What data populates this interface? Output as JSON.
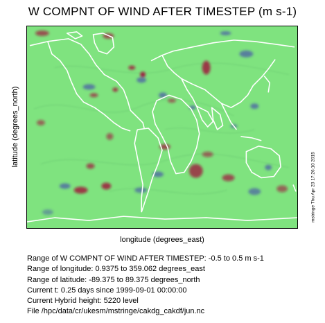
{
  "title": "W COMPNT OF WIND AFTER TIMESTEP (m s-1)",
  "xlabel": "longitude (degrees_east)",
  "ylabel": "latitude (degrees_north)",
  "stamp": "mstringe Thu Apr 23 17:26:10 2015",
  "info": [
    "Range of W COMPNT OF WIND AFTER TIMESTEP: -0.5 to 0.5 m s-1",
    "Range of longitude: 0.9375 to 359.062 degrees_east",
    "Range of latitude: -89.375 to 89.375 degrees_north",
    "Current t: 0.25 days since 1999-09-01 00:00:00",
    "Current Hybrid height: 5220 level",
    "File /hpc/data/cr/ukesm/mstringe/cakdg_cakdf/jun.nc"
  ],
  "colors": {
    "background_field": "#7fe37f",
    "positive": "#a0103a",
    "negative": "#3a3ab0",
    "coastline": "#ffffff"
  }
}
